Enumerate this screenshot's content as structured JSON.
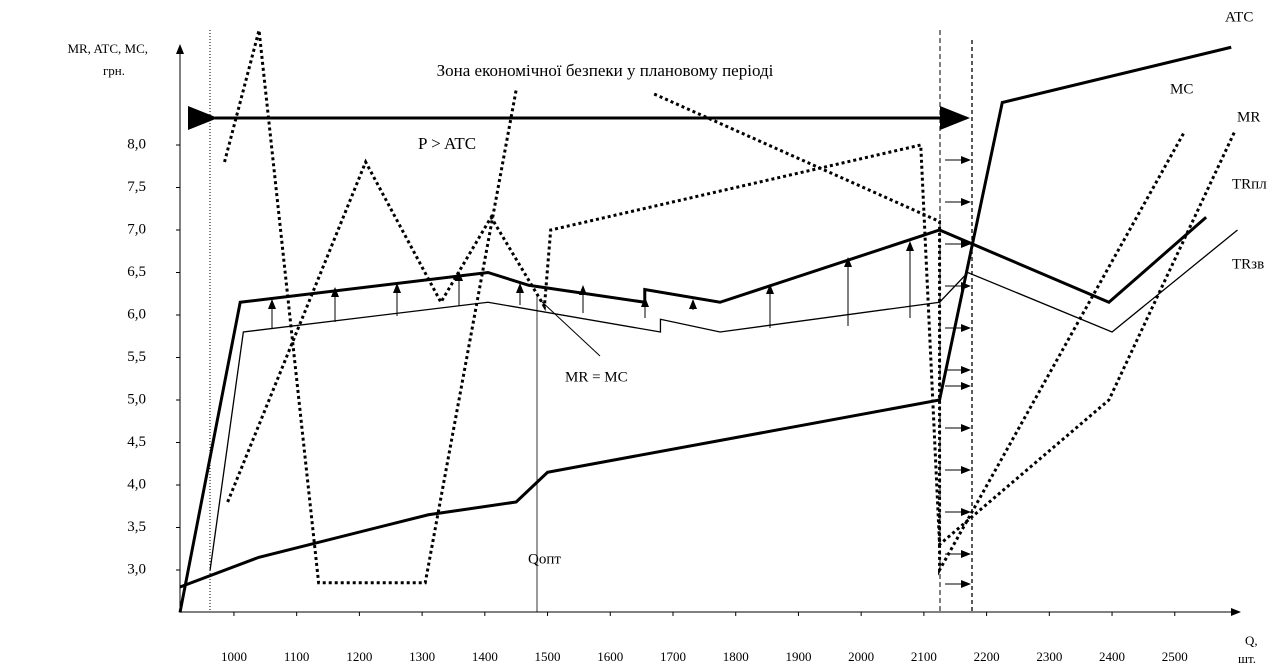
{
  "chart_data": {
    "type": "line",
    "title": "Зона економічної безпеки у плановому періоді",
    "annotations": [
      "P > ATC",
      "MR = MC",
      "Qопт"
    ],
    "y_label": [
      "MR, ATC,  MC,",
      "грн."
    ],
    "x_label": [
      "Q,",
      "шт."
    ],
    "xlim": [
      914,
      2604
    ],
    "ylim": [
      2.5,
      9.4
    ],
    "xticks": [
      1000,
      1100,
      1200,
      1300,
      1400,
      1500,
      1600,
      1700,
      1800,
      1900,
      2000,
      2100,
      2200,
      2300,
      2400,
      2500
    ],
    "yticks": [
      {
        "value": 3,
        "label": "3,0"
      },
      {
        "value": 3.5,
        "label": "3,5"
      },
      {
        "value": 4,
        "label": "4,0"
      },
      {
        "value": 4.5,
        "label": "4,5"
      },
      {
        "value": 5,
        "label": "5,0"
      },
      {
        "value": 5.5,
        "label": "5,5"
      },
      {
        "value": 6,
        "label": "6,0"
      },
      {
        "value": 6.5,
        "label": "6,5"
      },
      {
        "value": 7,
        "label": "7,0"
      },
      {
        "value": 7.5,
        "label": "7,5"
      },
      {
        "value": 8,
        "label": "8,0"
      }
    ],
    "series": [
      {
        "name": "ATC",
        "color": "#000000",
        "style": "solid",
        "width": 3,
        "x": [
          914,
          1040,
          1310,
          1450,
          1500,
          2125,
          2225,
          2590
        ],
        "values": [
          2.8,
          3.15,
          3.65,
          3.8,
          4.15,
          5.0,
          8.5,
          9.15
        ]
      },
      {
        "name": "MC",
        "color": "#000000",
        "style": "dotted",
        "width": 3,
        "x": [
          985,
          1040,
          1135,
          1305,
          1450,
          null,
          1670,
          2125,
          2125,
          2515
        ],
        "values": [
          7.8,
          9.35,
          2.85,
          2.85,
          8.65,
          null,
          8.6,
          7.1,
          3.0,
          8.15
        ]
      },
      {
        "name": "MR",
        "color": "#000000",
        "style": "dotted",
        "width": 3,
        "x": [
          990,
          1210,
          1330,
          1410,
          1495,
          1505,
          2095,
          2125,
          2395,
          2595
        ],
        "values": [
          3.8,
          7.8,
          6.15,
          7.15,
          6.1,
          7.0,
          8.0,
          3.3,
          5.0,
          8.15
        ]
      },
      {
        "name": "TRпл",
        "color": "#000000",
        "style": "solid",
        "width": 3,
        "x": [
          914,
          1010,
          1405,
          1470,
          1655,
          1655,
          1775,
          2125,
          2395,
          2550
        ],
        "values": [
          2.5,
          6.15,
          6.5,
          6.35,
          6.15,
          6.3,
          6.15,
          7.0,
          6.15,
          7.15
        ]
      },
      {
        "name": "TRзв",
        "color": "#000000",
        "style": "solid",
        "width": 1.3,
        "x": [
          962,
          1015,
          1405,
          1680,
          1680,
          1775,
          2125,
          2170,
          2400,
          2600
        ],
        "values": [
          3.0,
          5.8,
          6.15,
          5.8,
          5.95,
          5.8,
          6.15,
          6.5,
          5.8,
          7.0
        ]
      }
    ]
  }
}
